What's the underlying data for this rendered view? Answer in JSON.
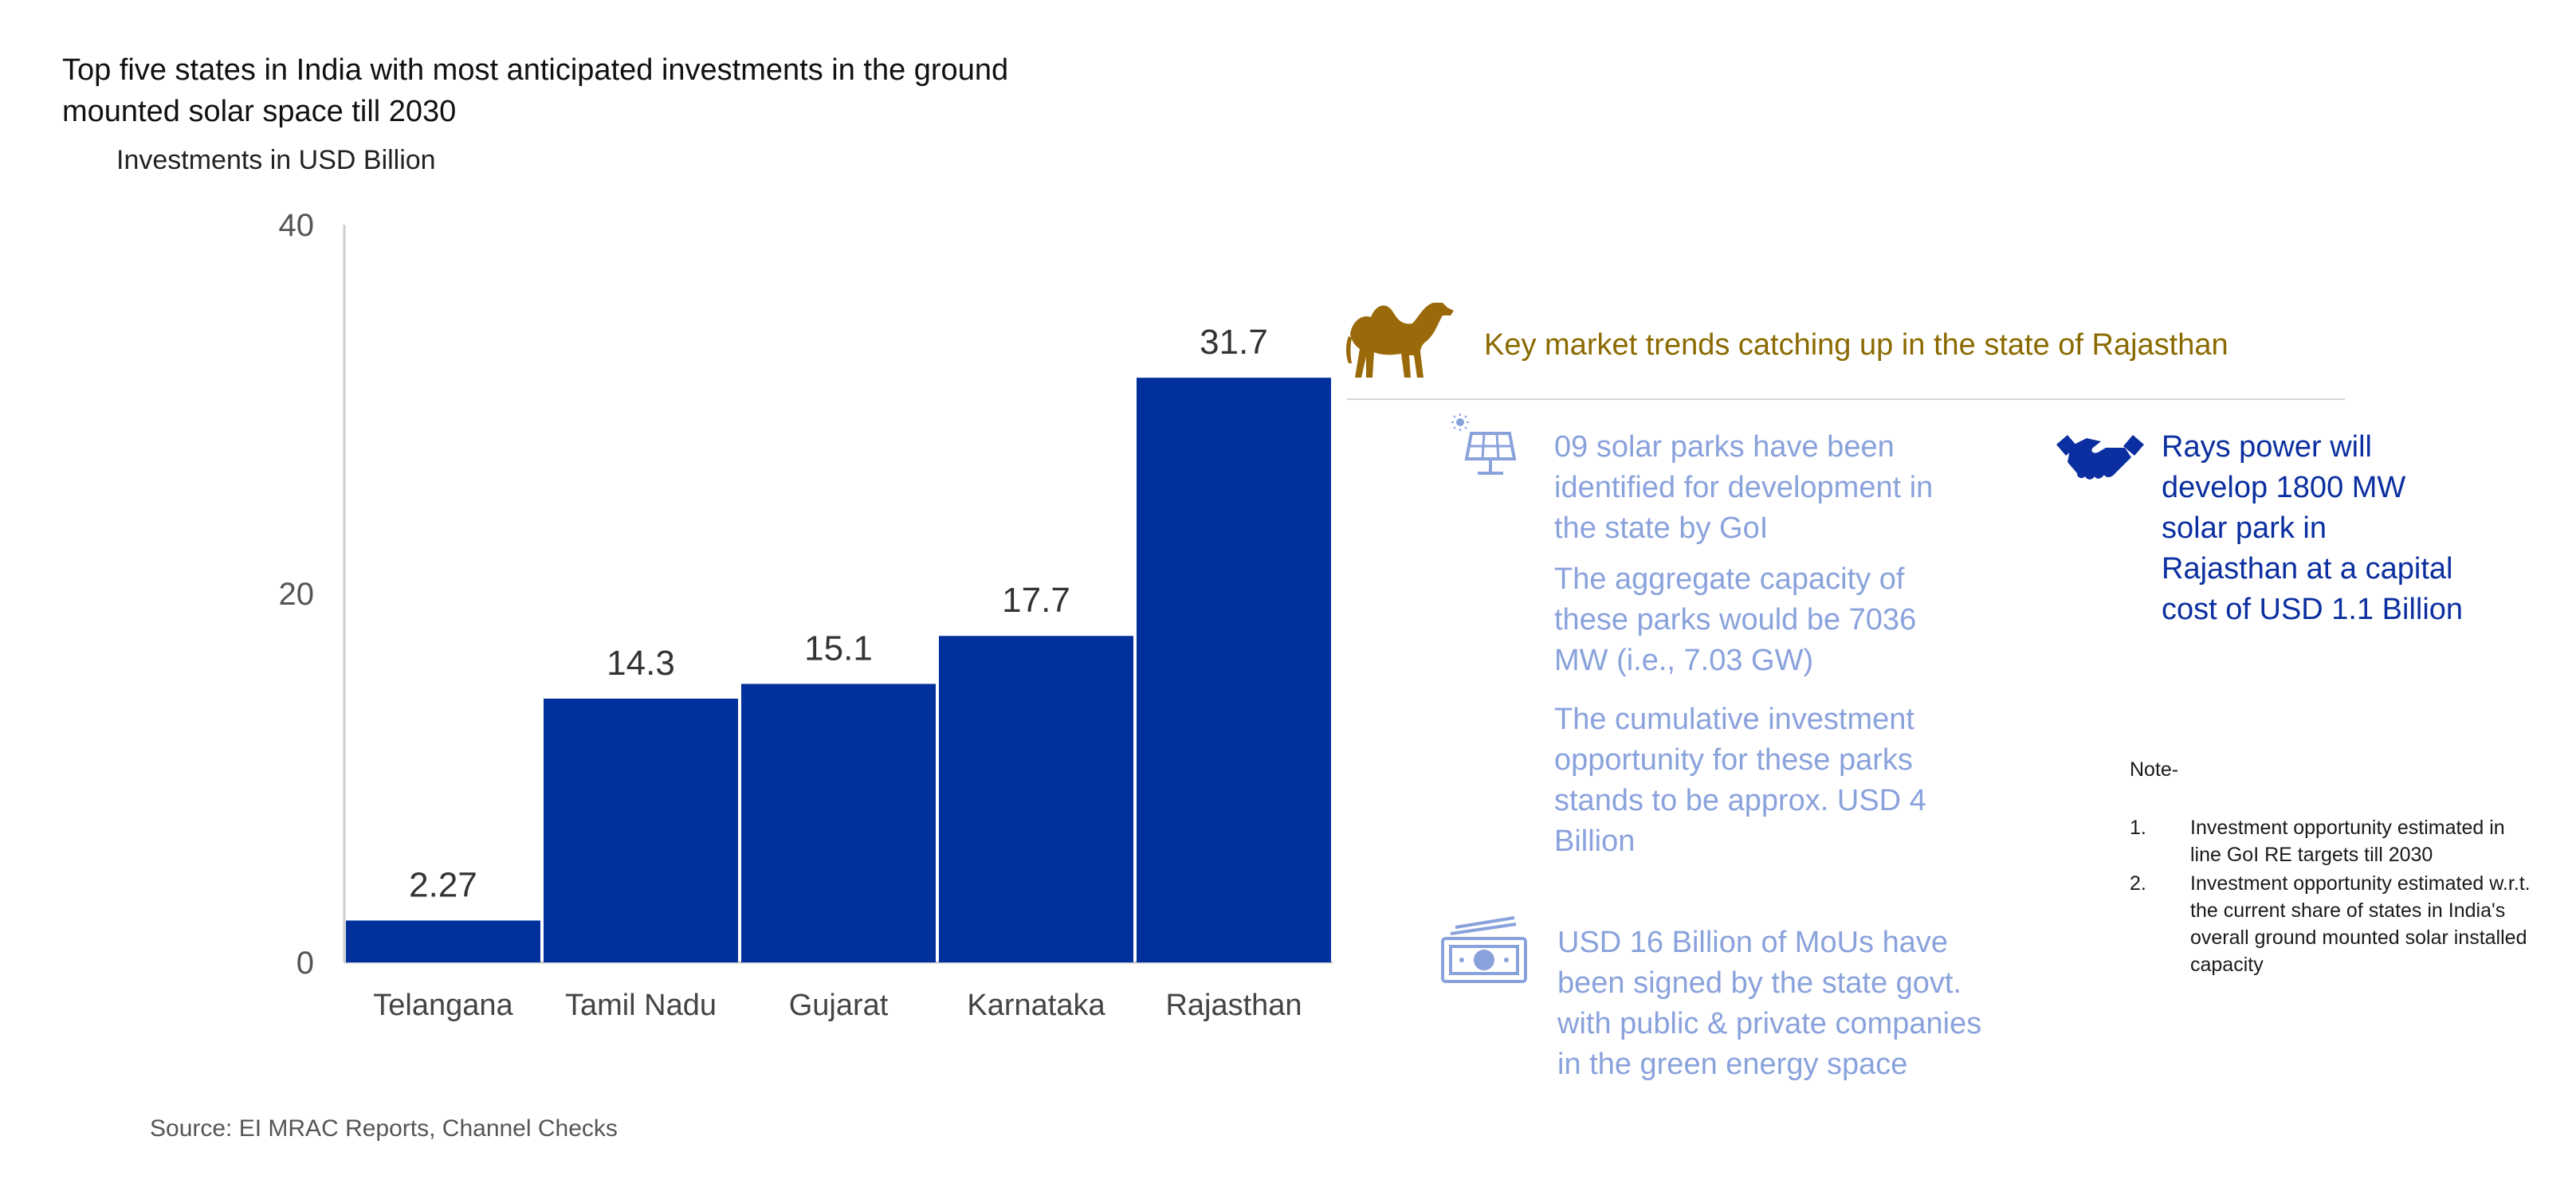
{
  "title": "Top five states in India with most anticipated investments in the ground mounted solar space till 2030",
  "colors": {
    "bar": "#00309c",
    "axis": "#cccccc",
    "trend_title": "#8a6a00",
    "light_text": "#8aa2dc",
    "dark_blue_text": "#0b2fa0",
    "icon_brown": "#9a6a0a",
    "icon_blue": "#8aa2dc"
  },
  "chart_data": {
    "type": "bar",
    "title": "Top five states in India with most anticipated investments in the ground mounted solar space till 2030",
    "ylabel": "Investments in USD Billion",
    "xlabel": "",
    "categories": [
      "Telangana",
      "Tamil Nadu",
      "Gujarat",
      "Karnataka",
      "Rajasthan"
    ],
    "values": [
      2.27,
      14.3,
      15.1,
      17.7,
      31.7
    ],
    "value_labels": [
      "2.27",
      "14.3",
      "15.1",
      "17.7",
      "31.7"
    ],
    "ylim": [
      0,
      40
    ],
    "yticks": [
      "0",
      "20",
      "40"
    ],
    "grid": false
  },
  "trends": {
    "icon": "camel-icon",
    "title": "Key market trends catching up in the state of Rajasthan",
    "solar_icon": "solar-panel-icon",
    "parks": "09 solar parks have been identified for development in the state by GoI",
    "capacity": "The aggregate capacity of these parks would be 7036 MW (i.e., 7.03 GW)",
    "investment": "The cumulative investment opportunity for these parks stands to be approx. USD 4 Billion",
    "money_icon": "money-icon",
    "mou": "USD 16 Billion of MoUs have been signed by the state govt. with public & private companies in the green energy space",
    "handshake_icon": "handshake-icon",
    "rays": "Rays power will develop 1800 MW solar park in Rajasthan at a capital cost of USD 1.1 Billion"
  },
  "note": {
    "heading": "Note-",
    "items": [
      {
        "num": "1.",
        "text": "Investment opportunity estimated in line GoI RE targets till 2030"
      },
      {
        "num": "2.",
        "text": "Investment opportunity estimated w.r.t. the current share of states in India's overall ground mounted solar installed capacity"
      }
    ]
  },
  "source": "Source: EI MRAC Reports, Channel Checks"
}
